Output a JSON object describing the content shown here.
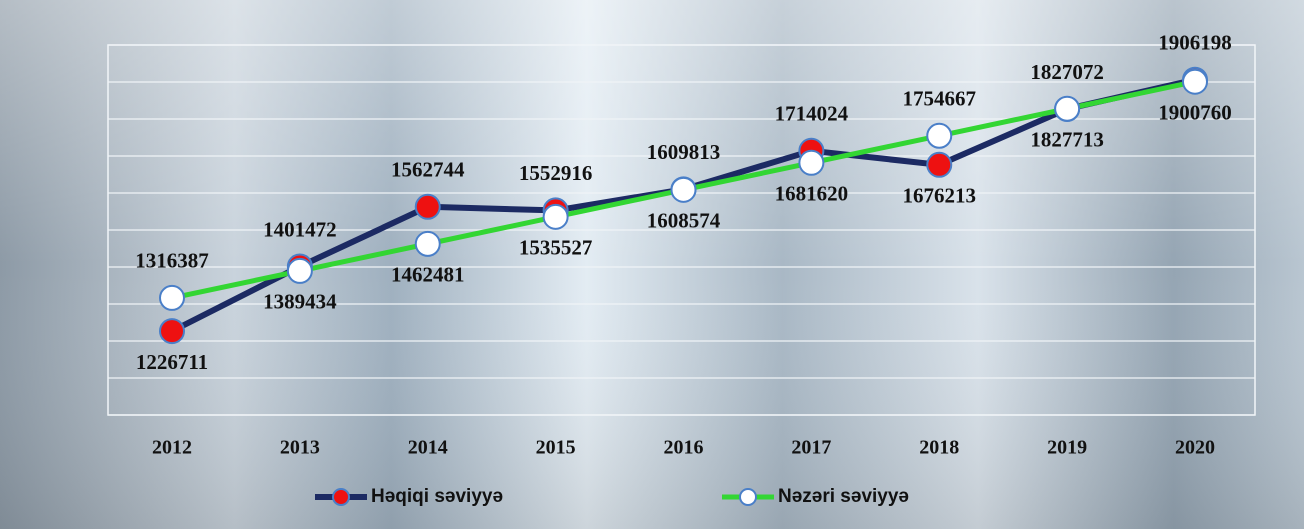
{
  "chart_data": {
    "type": "line",
    "categories": [
      "2012",
      "2013",
      "2014",
      "2015",
      "2016",
      "2017",
      "2018",
      "2019",
      "2020"
    ],
    "series": [
      {
        "name": "Həqiqi səviyyə",
        "color": "#1c2a63",
        "marker_color": "#ee1111",
        "values": [
          1226711,
          1401472,
          1562744,
          1552916,
          1609813,
          1714024,
          1676213,
          1827072,
          1906198
        ]
      },
      {
        "name": "Nəzəri səviyyə",
        "color": "#33d633",
        "marker_color": "#ffffff",
        "values": [
          1316387,
          1389434,
          1462481,
          1535527,
          1608574,
          1681620,
          1754667,
          1827713,
          1900760
        ]
      }
    ],
    "ylim": [
      1000000,
      2000000
    ],
    "yticks": [
      1000000,
      1100000,
      1200000,
      1300000,
      1400000,
      1500000,
      1600000,
      1700000,
      1800000,
      1900000,
      2000000
    ],
    "grid": true,
    "legend": "bottom"
  }
}
